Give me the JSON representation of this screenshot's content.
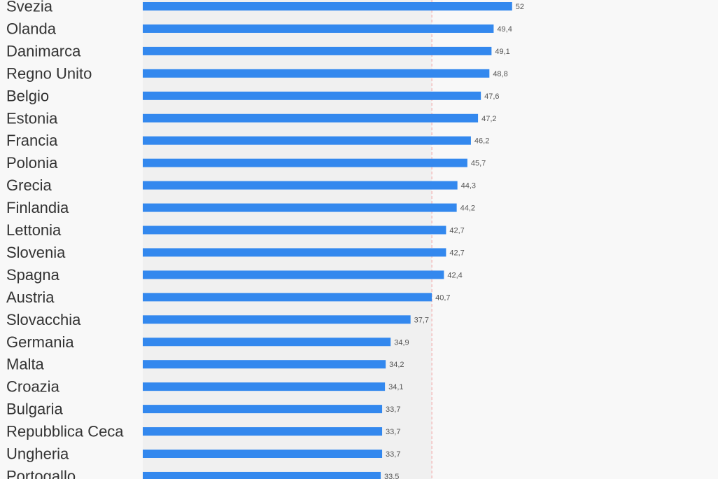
{
  "chart_data": {
    "type": "bar",
    "orientation": "horizontal",
    "categories": [
      "Svezia",
      "Olanda",
      "Danimarca",
      "Regno Unito",
      "Belgio",
      "Estonia",
      "Francia",
      "Polonia",
      "Grecia",
      "Finlandia",
      "Lettonia",
      "Slovenia",
      "Spagna",
      "Austria",
      "Slovacchia",
      "Germania",
      "Malta",
      "Croazia",
      "Bulgaria",
      "Repubblica Ceca",
      "Ungheria",
      "Portogallo"
    ],
    "values": [
      52,
      49.4,
      49.1,
      48.8,
      47.6,
      47.2,
      46.2,
      45.7,
      44.3,
      44.2,
      42.7,
      42.7,
      42.4,
      40.7,
      37.7,
      34.9,
      34.2,
      34.1,
      33.7,
      33.7,
      33.7,
      33.5
    ],
    "value_labels": [
      "52",
      "49,4",
      "49,1",
      "48,8",
      "47,6",
      "47,2",
      "46,2",
      "45,7",
      "44,3",
      "44,2",
      "42,7",
      "42,7",
      "42,4",
      "40,7",
      "37,7",
      "34,9",
      "34,2",
      "34,1",
      "33,7",
      "33,7",
      "33,7",
      "33,5"
    ],
    "reference_value": 40.7,
    "xlim": [
      0,
      100
    ],
    "colors": {
      "bar": "#3388ee",
      "reference_line": "#f4a4a4",
      "reference_band": "#f0f0f0",
      "background": "#f8f8f8",
      "category_text": "#333333",
      "value_text": "#555555"
    },
    "grid": false,
    "legend": "none"
  }
}
